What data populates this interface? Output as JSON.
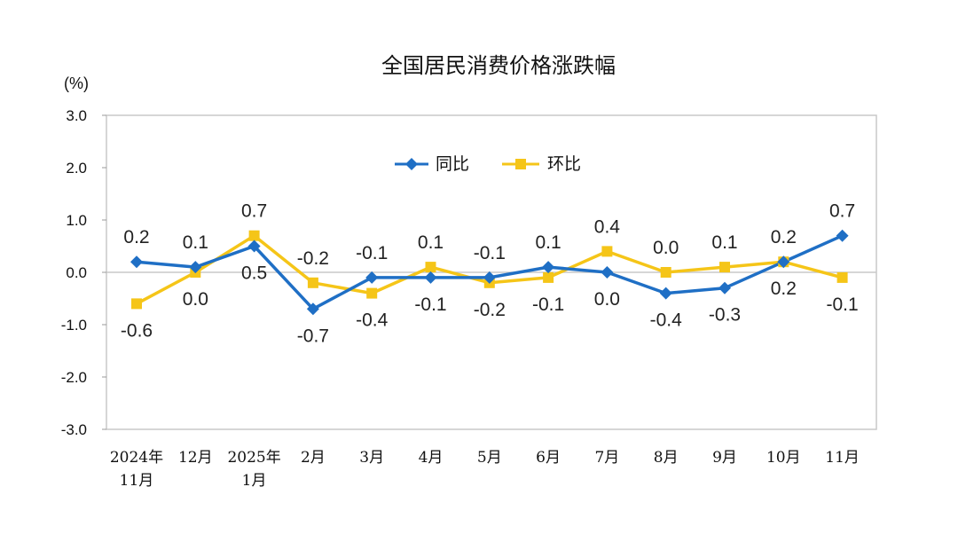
{
  "chart_data": {
    "type": "line",
    "title": "全国居民消费价格涨跌幅",
    "unit_label": "(%)",
    "ylim": [
      -3.0,
      3.0
    ],
    "y_ticks": [
      "3.0",
      "2.0",
      "1.0",
      "0.0",
      "-1.0",
      "-2.0",
      "-3.0"
    ],
    "y_tick_values": [
      3,
      2,
      1,
      0,
      -1,
      -2,
      -3
    ],
    "categories": [
      [
        "2024年",
        "11月"
      ],
      [
        "12月"
      ],
      [
        "2025年",
        "1月"
      ],
      [
        "2月"
      ],
      [
        "3月"
      ],
      [
        "4月"
      ],
      [
        "5月"
      ],
      [
        "6月"
      ],
      [
        "7月"
      ],
      [
        "8月"
      ],
      [
        "9月"
      ],
      [
        "10月"
      ],
      [
        "11月"
      ]
    ],
    "series": [
      {
        "name": "同比",
        "color": "#1F6FC5",
        "marker": "diamond",
        "values": [
          0.2,
          0.1,
          0.5,
          -0.7,
          -0.1,
          -0.1,
          -0.1,
          0.1,
          0.0,
          -0.4,
          -0.3,
          0.2,
          0.7
        ],
        "labels": [
          "0.2",
          "0.1",
          "0.5",
          "-0.7",
          "-0.1",
          "-0.1",
          "-0.1",
          "0.1",
          "0.0",
          "-0.4",
          "-0.3",
          "0.2",
          "0.7"
        ]
      },
      {
        "name": "环比",
        "color": "#F5C518",
        "marker": "square",
        "values": [
          -0.6,
          0.0,
          0.7,
          -0.2,
          -0.4,
          0.1,
          -0.2,
          -0.1,
          0.4,
          0.0,
          0.1,
          0.2,
          -0.1
        ],
        "labels": [
          "-0.6",
          "0.0",
          "0.7",
          "-0.2",
          "-0.4",
          "0.1",
          "-0.2",
          "-0.1",
          "0.4",
          "0.0",
          "0.1",
          "0.2",
          "-0.1"
        ]
      }
    ],
    "legend": {
      "position": "top-center",
      "items": [
        "同比",
        "环比"
      ]
    }
  }
}
